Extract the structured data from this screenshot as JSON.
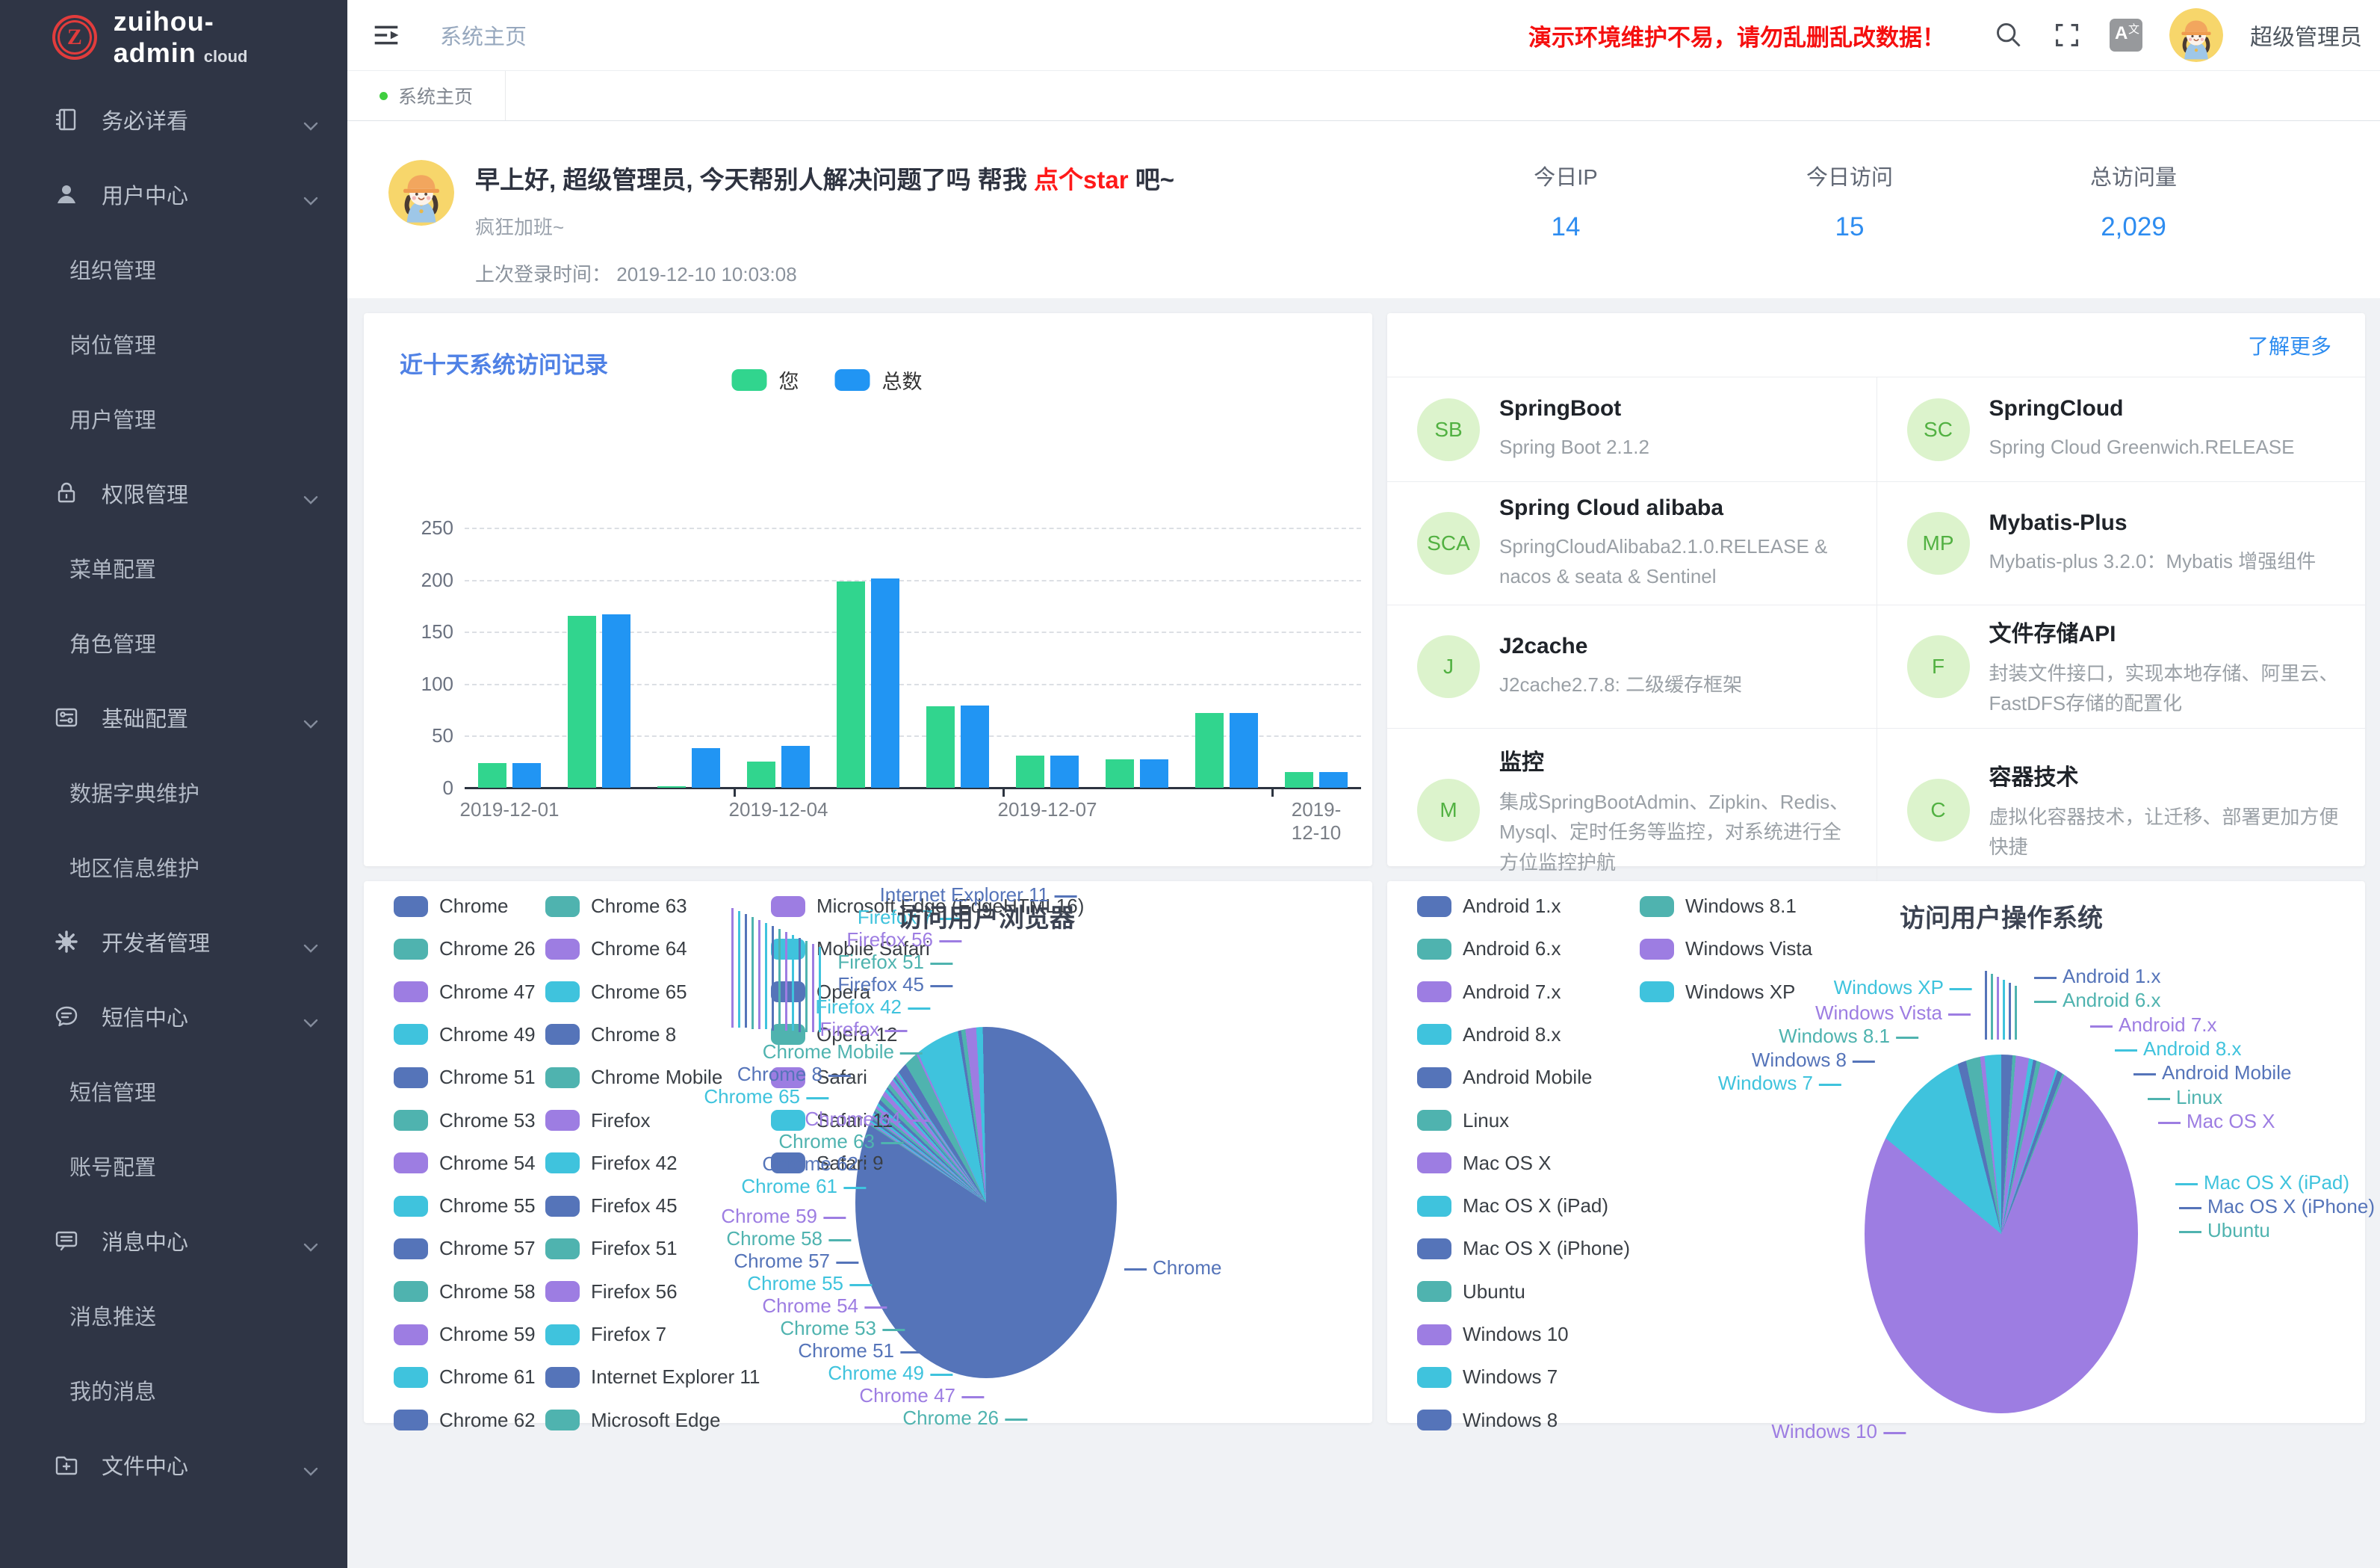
{
  "app": {
    "sidebar": {
      "logo_text": "zuihou-admin",
      "logo_suffix": "cloud",
      "logo_letter": "Z",
      "menu": [
        {
          "label": "务必详看",
          "icon": "notebook-icon",
          "type": "group"
        },
        {
          "label": "用户中心",
          "icon": "user-icon",
          "type": "group"
        },
        {
          "label": "组织管理",
          "type": "child"
        },
        {
          "label": "岗位管理",
          "type": "child"
        },
        {
          "label": "用户管理",
          "type": "child"
        },
        {
          "label": "权限管理",
          "icon": "lock-icon",
          "type": "group"
        },
        {
          "label": "菜单配置",
          "type": "child"
        },
        {
          "label": "角色管理",
          "type": "child"
        },
        {
          "label": "基础配置",
          "icon": "sliders-icon",
          "type": "group"
        },
        {
          "label": "数据字典维护",
          "type": "child"
        },
        {
          "label": "地区信息维护",
          "type": "child"
        },
        {
          "label": "开发者管理",
          "icon": "gear-icon",
          "type": "group"
        },
        {
          "label": "短信中心",
          "icon": "chat-icon",
          "type": "group"
        },
        {
          "label": "短信管理",
          "type": "child"
        },
        {
          "label": "账号配置",
          "type": "child"
        },
        {
          "label": "消息中心",
          "icon": "message-icon",
          "type": "group"
        },
        {
          "label": "消息推送",
          "type": "child"
        },
        {
          "label": "我的消息",
          "type": "child"
        },
        {
          "label": "文件中心",
          "icon": "folder-plus-icon",
          "type": "group"
        }
      ]
    },
    "header": {
      "breadcrumb": "系统主页",
      "warning": "演示环境维护不易，请勿乱删乱改数据！",
      "username": "超级管理员"
    },
    "tabbar": {
      "active_tab": "系统主页"
    },
    "welcome": {
      "greeting_prefix": "早上好, 超级管理员, 今天帮别人解决问题了吗 帮我 ",
      "greeting_link": "点个star",
      "greeting_suffix": " 吧~",
      "subtitle": "疯狂加班~",
      "last_login_label": "上次登录时间：",
      "last_login_time": "2019-12-10 10:03:08",
      "stats": [
        {
          "label": "今日IP",
          "value": "14"
        },
        {
          "label": "今日访问",
          "value": "15"
        },
        {
          "label": "总访问量",
          "value": "2,029"
        }
      ]
    },
    "features": {
      "more_link": "了解更多",
      "items": [
        {
          "badge": "SB",
          "title": "SpringBoot",
          "desc": "Spring Boot 2.1.2"
        },
        {
          "badge": "SC",
          "title": "SpringCloud",
          "desc": "Spring Cloud Greenwich.RELEASE"
        },
        {
          "badge": "SCA",
          "title": "Spring Cloud alibaba",
          "desc": "SpringCloudAlibaba2.1.0.RELEASE & nacos & seata & Sentinel"
        },
        {
          "badge": "MP",
          "title": "Mybatis-Plus",
          "desc": "Mybatis-plus 3.2.0：Mybatis 增强组件"
        },
        {
          "badge": "J",
          "title": "J2cache",
          "desc": "J2cache2.7.8: 二级缓存框架"
        },
        {
          "badge": "F",
          "title": "文件存储API",
          "desc": "封装文件接口，实现本地存储、阿里云、FastDFS存储的配置化"
        },
        {
          "badge": "M",
          "title": "监控",
          "desc": "集成SpringBootAdmin、Zipkin、Redis、Mysql、定时任务等监控，对系统进行全方位监控护航"
        },
        {
          "badge": "C",
          "title": "容器技术",
          "desc": "虚拟化容器技术，让迁移、部署更加方便快捷"
        }
      ]
    }
  },
  "colors": {
    "accent_blue": "#2d8cf0",
    "warning_red": "#f50f0f",
    "bar_green": "#31d58e",
    "bar_blue": "#2195f3",
    "pie_palette": [
      "#5574b9",
      "#4fb3af",
      "#9d7de2",
      "#3fc3dd"
    ],
    "sidebar_bg": "#2f3545",
    "tab_dot_green": "#3fce3f"
  },
  "chart_data": [
    {
      "type": "bar",
      "title": "近十天系统访问记录",
      "categories": [
        "2019-12-01",
        "2019-12-02",
        "2019-12-03",
        "2019-12-04",
        "2019-12-05",
        "2019-12-06",
        "2019-12-07",
        "2019-12-08",
        "2019-12-09",
        "2019-12-10"
      ],
      "series": [
        {
          "name": "您",
          "values": [
            24,
            165,
            1,
            25,
            198,
            78,
            31,
            27,
            72,
            15
          ]
        },
        {
          "name": "总数",
          "values": [
            24,
            167,
            38,
            40,
            201,
            79,
            31,
            27,
            72,
            15
          ]
        }
      ],
      "xlabel": "",
      "ylabel": "",
      "ylim": [
        0,
        250
      ],
      "yticks": [
        0,
        50,
        100,
        150,
        200,
        250
      ],
      "xtick_labels": [
        "2019-12-01",
        "2019-12-04",
        "2019-12-07",
        "2019-12-10"
      ],
      "legend_position": "top",
      "grid": true
    },
    {
      "type": "pie",
      "title": "访问用户浏览器",
      "unit": "percent_estimated",
      "series": [
        {
          "name": "Chrome",
          "value": 84.35
        },
        {
          "name": "Chrome 26",
          "value": 0.15
        },
        {
          "name": "Chrome 47",
          "value": 0.15
        },
        {
          "name": "Chrome 49",
          "value": 0.2
        },
        {
          "name": "Chrome 51",
          "value": 0.25
        },
        {
          "name": "Chrome 53",
          "value": 0.15
        },
        {
          "name": "Chrome 54",
          "value": 0.2
        },
        {
          "name": "Chrome 55",
          "value": 0.25
        },
        {
          "name": "Chrome 57",
          "value": 0.25
        },
        {
          "name": "Chrome 58",
          "value": 0.3
        },
        {
          "name": "Chrome 59",
          "value": 0.3
        },
        {
          "name": "Chrome 61",
          "value": 0.3
        },
        {
          "name": "Chrome 62",
          "value": 0.4
        },
        {
          "name": "Chrome 63",
          "value": 0.5
        },
        {
          "name": "Chrome 64",
          "value": 0.5
        },
        {
          "name": "Chrome 65",
          "value": 0.3
        },
        {
          "name": "Chrome 8",
          "value": 0.2
        },
        {
          "name": "Chrome Mobile",
          "value": 0.4
        },
        {
          "name": "Firefox",
          "value": 0.5
        },
        {
          "name": "Firefox 42",
          "value": 0.15
        },
        {
          "name": "Firefox 45",
          "value": 0.2
        },
        {
          "name": "Firefox 51",
          "value": 0.2
        },
        {
          "name": "Firefox 56",
          "value": 0.25
        },
        {
          "name": "Firefox 7",
          "value": 0.15
        },
        {
          "name": "Internet Explorer 11",
          "value": 1.0
        },
        {
          "name": "Microsoft Edge",
          "value": 1.4
        },
        {
          "name": "Microsoft Edge (EdgeHTML16)",
          "value": 0.2
        },
        {
          "name": "Mobile Safari",
          "value": 4.2
        },
        {
          "name": "Opera",
          "value": 0.3
        },
        {
          "name": "Opera 12",
          "value": 0.4
        },
        {
          "name": "Safari",
          "value": 1.0
        },
        {
          "name": "Safari 11",
          "value": 0.6
        },
        {
          "name": "Safari 9",
          "value": 0.3
        }
      ]
    },
    {
      "type": "pie",
      "title": "访问用户操作系统",
      "unit": "percent_estimated",
      "series": [
        {
          "name": "Android 1.x",
          "value": 1.0
        },
        {
          "name": "Android 6.x",
          "value": 0.3
        },
        {
          "name": "Android 7.x",
          "value": 1.2
        },
        {
          "name": "Android 8.x",
          "value": 0.4
        },
        {
          "name": "Android Mobile",
          "value": 0.3
        },
        {
          "name": "Linux",
          "value": 0.4
        },
        {
          "name": "Mac OS X",
          "value": 1.5
        },
        {
          "name": "Mac OS X (iPad)",
          "value": 0.2
        },
        {
          "name": "Mac OS X (iPhone)",
          "value": 0.5
        },
        {
          "name": "Ubuntu",
          "value": 0.2
        },
        {
          "name": "Windows 10",
          "value": 80.0
        },
        {
          "name": "Windows 7",
          "value": 10.0
        },
        {
          "name": "Windows 8",
          "value": 0.8
        },
        {
          "name": "Windows 8.1",
          "value": 1.3
        },
        {
          "name": "Windows Vista",
          "value": 0.4
        },
        {
          "name": "Windows XP",
          "value": 1.5
        }
      ]
    }
  ]
}
